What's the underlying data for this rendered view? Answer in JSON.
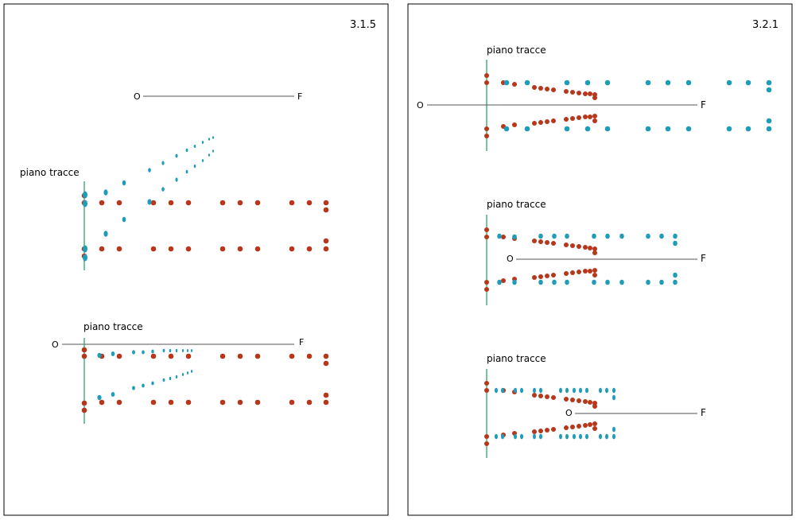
{
  "colors": {
    "frame": "#000000",
    "trace_plane": "#1aa05a",
    "axis": "#444444",
    "red_point": "#b8361a",
    "teal_point": "#1f9cb8"
  },
  "labels": {
    "trace_plane": "piano tracce",
    "origin": "O",
    "focus": "F"
  },
  "panels": [
    {
      "id": "left",
      "title": "3.1.5"
    },
    {
      "id": "right",
      "title": "3.2.1"
    }
  ]
}
